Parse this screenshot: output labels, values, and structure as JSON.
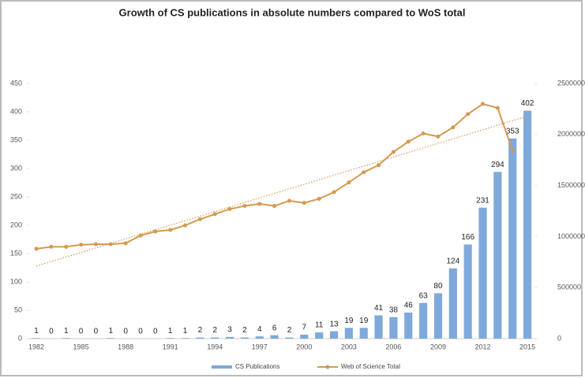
{
  "chart_data": {
    "type": "bar_line",
    "title": "Growth of CS publications in absolute numbers compared to WoS total",
    "categories": [
      "1982",
      null,
      null,
      "1985",
      null,
      null,
      "1988",
      null,
      null,
      "1991",
      null,
      null,
      "1994",
      null,
      null,
      "1997",
      null,
      null,
      "2000",
      null,
      null,
      "2003",
      null,
      null,
      "2006",
      null,
      null,
      "2009",
      null,
      null,
      "2012",
      null,
      null,
      "2015"
    ],
    "series": [
      {
        "name": "CS Publications",
        "type": "bar",
        "color": "#7fa9da",
        "values": [
          1,
          0,
          1,
          0,
          0,
          1,
          0,
          0,
          0,
          1,
          1,
          2,
          2,
          3,
          2,
          4,
          6,
          2,
          7,
          11,
          13,
          19,
          19,
          41,
          38,
          46,
          63,
          80,
          124,
          166,
          231,
          294,
          353,
          402
        ]
      },
      {
        "name": "Web of Science Total",
        "type": "line",
        "axis": "y2",
        "color": "#d6994f",
        "trendline": true,
        "values": [
          880000,
          900000,
          900000,
          920000,
          925000,
          925000,
          935000,
          1010000,
          1050000,
          1065000,
          1110000,
          1170000,
          1220000,
          1270000,
          1300000,
          1320000,
          1300000,
          1350000,
          1330000,
          1370000,
          1435000,
          1530000,
          1630000,
          1700000,
          1830000,
          1930000,
          2010000,
          1980000,
          2070000,
          2200000,
          2300000,
          2260000,
          1840000,
          null
        ]
      }
    ],
    "ylim": [
      0,
      450
    ],
    "yticks": [
      0,
      50,
      100,
      150,
      200,
      250,
      300,
      350,
      400,
      450
    ],
    "y2lim": [
      0,
      2500000
    ],
    "y2ticks": [
      0,
      500000,
      1000000,
      1500000,
      2000000,
      2500000
    ],
    "legend": "bottom"
  }
}
